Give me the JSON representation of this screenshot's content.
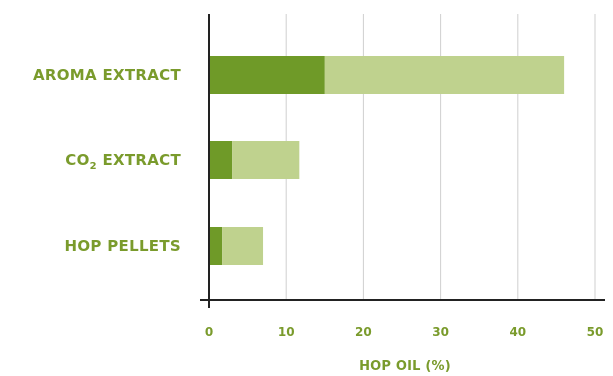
{
  "chart_data": {
    "type": "bar",
    "orientation": "horizontal",
    "stacked": true,
    "categories": [
      "AROMA EXTRACT",
      "CO2 EXTRACT",
      "HOP PELLETS"
    ],
    "category_display": [
      {
        "main": "AROMA EXTRACT",
        "prefix": "",
        "subscript": "",
        "suffix": ""
      },
      {
        "main": "",
        "prefix": "CO",
        "subscript": "2",
        "suffix": " EXTRACT"
      },
      {
        "main": "HOP PELLETS",
        "prefix": "",
        "subscript": "",
        "suffix": ""
      }
    ],
    "series": [
      {
        "values": [
          15,
          3,
          1.7
        ],
        "color": "#6f9a28"
      },
      {
        "values": [
          31,
          8.7,
          5.3
        ],
        "color": "#bfd28e"
      }
    ],
    "xlim": [
      0,
      50
    ],
    "xticks": [
      0,
      10,
      20,
      30,
      40,
      50
    ],
    "xlabel": "HOP OIL (%)",
    "grid": true,
    "label_color": "#7a9b2c",
    "grid_color": "#cfcfcf",
    "axis_color": "#222222"
  }
}
